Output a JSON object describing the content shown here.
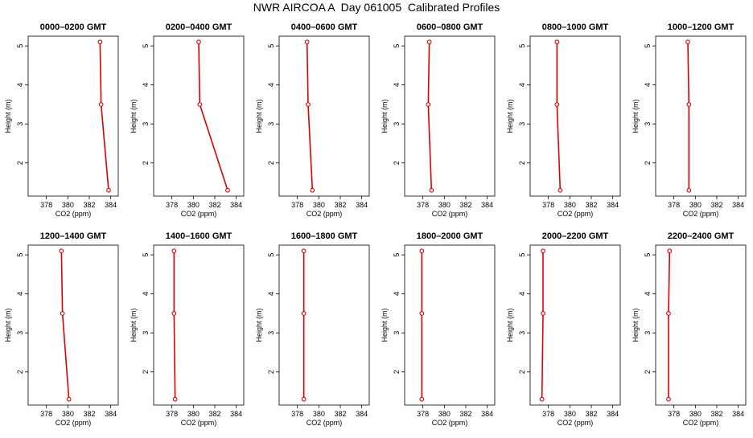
{
  "figure": {
    "title": "NWR AIRCOA A  Day 061005  Calibrated Profiles"
  },
  "chart_data": {
    "type": "line",
    "xlabel": "CO2 (ppm)",
    "ylabel": "Height (m)",
    "xlim": [
      376.3,
      384.7
    ],
    "ylim": [
      1.15,
      5.25
    ],
    "xticks": [
      378,
      380,
      382,
      384
    ],
    "yticks": [
      2,
      3,
      4,
      5
    ],
    "grid": false,
    "legend": "none",
    "series_color": "#dd0000",
    "panels": [
      {
        "title": "0000–0200 GMT",
        "points": [
          {
            "x": 383.0,
            "y": 5.1
          },
          {
            "x": 383.1,
            "y": 3.5
          },
          {
            "x": 383.8,
            "y": 1.3
          }
        ]
      },
      {
        "title": "0200–0400 GMT",
        "points": [
          {
            "x": 380.5,
            "y": 5.1
          },
          {
            "x": 380.6,
            "y": 3.5
          },
          {
            "x": 383.2,
            "y": 1.3
          }
        ]
      },
      {
        "title": "0400–0600 GMT",
        "points": [
          {
            "x": 378.9,
            "y": 5.1
          },
          {
            "x": 379.0,
            "y": 3.5
          },
          {
            "x": 379.4,
            "y": 1.3
          }
        ]
      },
      {
        "title": "0600–0800 GMT",
        "points": [
          {
            "x": 378.6,
            "y": 5.1
          },
          {
            "x": 378.5,
            "y": 3.5
          },
          {
            "x": 378.8,
            "y": 1.3
          }
        ]
      },
      {
        "title": "0800–1000 GMT",
        "points": [
          {
            "x": 378.8,
            "y": 5.1
          },
          {
            "x": 378.8,
            "y": 3.5
          },
          {
            "x": 379.1,
            "y": 1.3
          }
        ]
      },
      {
        "title": "1000–1200 GMT",
        "points": [
          {
            "x": 379.3,
            "y": 5.1
          },
          {
            "x": 379.4,
            "y": 3.5
          },
          {
            "x": 379.4,
            "y": 1.3
          }
        ]
      },
      {
        "title": "1200–1400 GMT",
        "points": [
          {
            "x": 379.4,
            "y": 5.1
          },
          {
            "x": 379.5,
            "y": 3.5
          },
          {
            "x": 380.1,
            "y": 1.3
          }
        ]
      },
      {
        "title": "1400–1600 GMT",
        "points": [
          {
            "x": 378.2,
            "y": 5.1
          },
          {
            "x": 378.2,
            "y": 3.5
          },
          {
            "x": 378.3,
            "y": 1.3
          }
        ]
      },
      {
        "title": "1600–1800 GMT",
        "points": [
          {
            "x": 378.6,
            "y": 5.1
          },
          {
            "x": 378.6,
            "y": 3.5
          },
          {
            "x": 378.6,
            "y": 1.3
          }
        ]
      },
      {
        "title": "1800–2000 GMT",
        "points": [
          {
            "x": 377.9,
            "y": 5.1
          },
          {
            "x": 377.9,
            "y": 3.5
          },
          {
            "x": 377.9,
            "y": 1.3
          }
        ]
      },
      {
        "title": "2000–2200 GMT",
        "points": [
          {
            "x": 377.5,
            "y": 5.1
          },
          {
            "x": 377.5,
            "y": 3.5
          },
          {
            "x": 377.4,
            "y": 1.3
          }
        ]
      },
      {
        "title": "2200–2400 GMT",
        "points": [
          {
            "x": 377.6,
            "y": 5.1
          },
          {
            "x": 377.5,
            "y": 3.5
          },
          {
            "x": 377.5,
            "y": 1.3
          }
        ]
      }
    ]
  }
}
